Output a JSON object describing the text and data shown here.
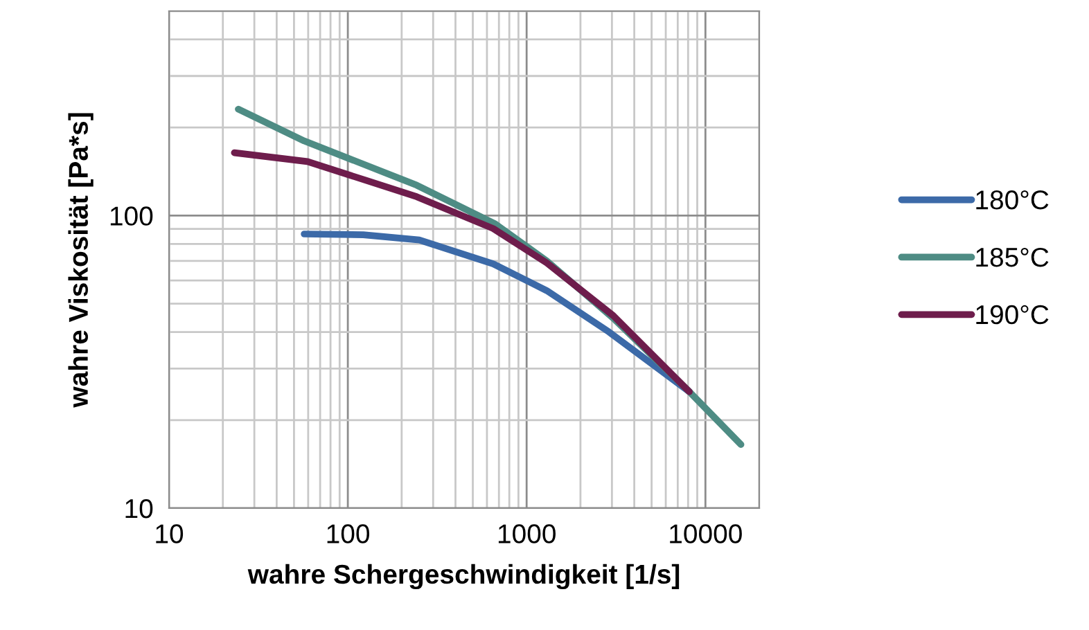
{
  "chart_data": {
    "type": "line",
    "xlabel": "wahre Schergeschwindigkeit [1/s]",
    "ylabel": "wahre Viskosität [Pa*s]",
    "log": "xy",
    "xlim": [
      10,
      20000
    ],
    "ylim": [
      10,
      500
    ],
    "xticks": [
      10,
      100,
      1000,
      10000
    ],
    "yticks": [
      10,
      100
    ],
    "grid": true,
    "legend": "right",
    "marker": "none",
    "line_style": "solid",
    "series": [
      {
        "name": "180°C",
        "color": "#3c6aa8",
        "x": [
          57,
          122,
          251,
          650,
          1296,
          2890,
          8130
        ],
        "values": [
          86.5,
          86,
          82.5,
          68.4,
          55.4,
          40,
          25
        ]
      },
      {
        "name": "185°C",
        "color": "#4e8c84",
        "x": [
          24.4,
          57,
          243,
          667,
          1296,
          3050,
          8130,
          15800
        ],
        "values": [
          231,
          180,
          127,
          93.7,
          70,
          44.6,
          25,
          16.5
        ]
      },
      {
        "name": "190°C",
        "color": "#6e1d4c",
        "x": [
          23.2,
          59.5,
          243,
          650,
          1296,
          3050,
          8130
        ],
        "values": [
          164,
          153,
          116,
          90.3,
          68.9,
          45.5,
          25
        ]
      }
    ]
  }
}
